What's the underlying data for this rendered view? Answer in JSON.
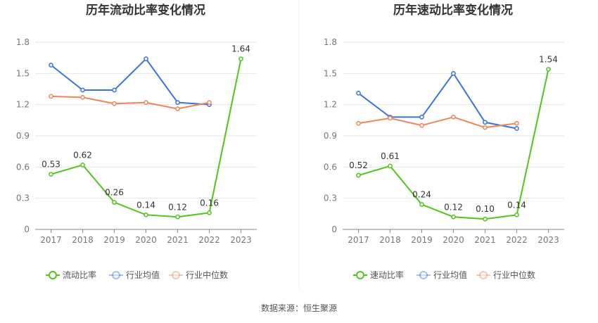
{
  "source": "数据来源：恒生聚源",
  "chart_data": [
    {
      "type": "line",
      "title": "历年流动比率变化情况",
      "categories": [
        "2017",
        "2018",
        "2019",
        "2020",
        "2021",
        "2022",
        "2023"
      ],
      "ylim": [
        0,
        1.8
      ],
      "yticks": [
        "0",
        "0.3",
        "0.6",
        "0.9",
        "1.2",
        "1.5",
        "1.8"
      ],
      "grid": true,
      "legend_position": "bottom",
      "series": [
        {
          "name": "流动比率",
          "color": "#52c41a",
          "values": [
            0.53,
            0.62,
            0.26,
            0.14,
            0.12,
            0.16,
            1.64
          ],
          "labels": [
            "0.53",
            "0.62",
            "0.26",
            "0.14",
            "0.12",
            "0.16",
            "1.64"
          ]
        },
        {
          "name": "行业均值",
          "color": "#3b73dc",
          "values": [
            1.58,
            1.34,
            1.34,
            1.64,
            1.22,
            1.2,
            null
          ]
        },
        {
          "name": "行业中位数",
          "color": "#f0855a",
          "values": [
            1.28,
            1.27,
            1.21,
            1.22,
            1.16,
            1.22,
            null
          ]
        }
      ]
    },
    {
      "type": "line",
      "title": "历年速动比率变化情况",
      "categories": [
        "2017",
        "2018",
        "2019",
        "2020",
        "2021",
        "2022",
        "2023"
      ],
      "ylim": [
        0,
        1.8
      ],
      "yticks": [
        "0",
        "0.3",
        "0.6",
        "0.9",
        "1.2",
        "1.5",
        "1.8"
      ],
      "grid": true,
      "legend_position": "bottom",
      "series": [
        {
          "name": "速动比率",
          "color": "#52c41a",
          "values": [
            0.52,
            0.61,
            0.24,
            0.12,
            0.1,
            0.14,
            1.54
          ],
          "labels": [
            "0.52",
            "0.61",
            "0.24",
            "0.12",
            "0.10",
            "0.14",
            "1.54"
          ]
        },
        {
          "name": "行业均值",
          "color": "#3b73dc",
          "values": [
            1.31,
            1.08,
            1.08,
            1.5,
            1.03,
            0.97,
            null
          ]
        },
        {
          "name": "行业中位数",
          "color": "#f0855a",
          "values": [
            1.02,
            1.07,
            1.0,
            1.08,
            0.98,
            1.02,
            null
          ]
        }
      ]
    }
  ]
}
